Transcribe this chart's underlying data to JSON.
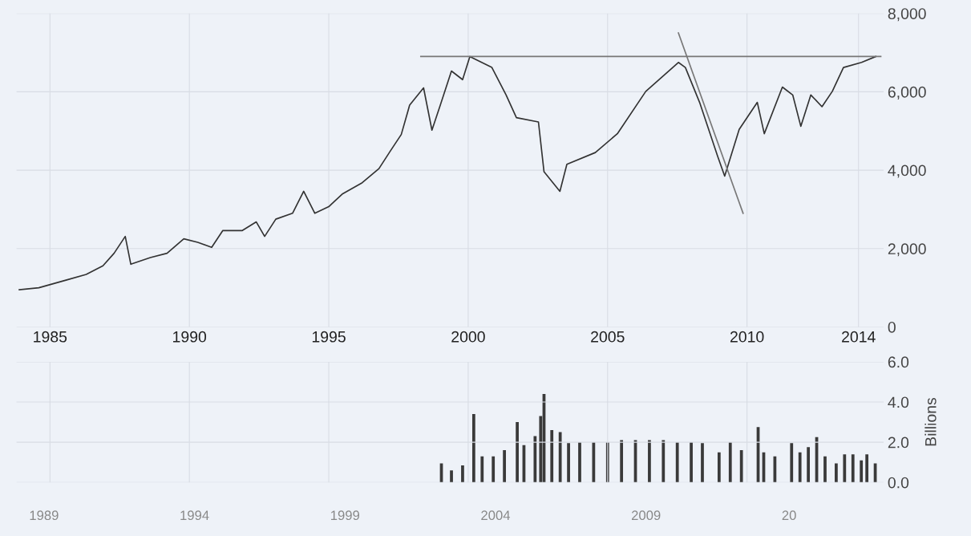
{
  "chart_data": [
    {
      "type": "line",
      "x": [
        1983.9,
        1984.6,
        1985.6,
        1986.3,
        1986.9,
        1987.3,
        1987.7,
        1987.9,
        1988.6,
        1989.2,
        1989.8,
        1990.3,
        1990.8,
        1991.2,
        1991.9,
        1992.4,
        1992.7,
        1993.1,
        1993.7,
        1994.1,
        1994.5,
        1995.0,
        1995.5,
        1996.2,
        1996.8,
        1997.2,
        1997.6,
        1997.9,
        1998.4,
        1998.7,
        1999.0,
        1999.4,
        1999.8,
        2000.06,
        2000.85,
        2001.36,
        2001.73,
        2002.52,
        2002.72,
        2003.29,
        2003.54,
        2004.56,
        2005.35,
        2006.37,
        2007.54,
        2007.79,
        2008.3,
        2008.95,
        2009.2,
        2009.72,
        2010.37,
        2010.62,
        2011.27,
        2011.64,
        2011.93,
        2012.29,
        2012.69,
        2013.06,
        2013.46,
        2014.11,
        2014.62
      ],
      "series": [
        {
          "color": "#333333",
          "values": [
            950,
            1000,
            1200,
            1340,
            1560,
            1880,
            2310,
            1600,
            1770,
            1880,
            2250,
            2160,
            2030,
            2460,
            2460,
            2680,
            2310,
            2750,
            2900,
            3460,
            2900,
            3070,
            3400,
            3680,
            4040,
            4480,
            4910,
            5660,
            6100,
            5020,
            5660,
            6530,
            6310,
            6900,
            6620,
            5920,
            5340,
            5230,
            3960,
            3460,
            4150,
            4450,
            4930,
            6010,
            6750,
            6620,
            5730,
            4350,
            3850,
            5040,
            5730,
            4930,
            6120,
            5920,
            5120,
            5920,
            5620,
            6010,
            6620,
            6750,
            6900
          ]
        },
        {
          "color": "#777777",
          "x": [
            1998.3,
            2014.8
          ],
          "values": [
            6900,
            6900
          ]
        },
        {
          "color": "#777777",
          "x": [
            2007.54,
            2009.86
          ],
          "values": [
            7500,
            2900
          ]
        }
      ],
      "xlim": [
        1983.8,
        2014.9
      ],
      "xticks": [
        1985,
        1990,
        1995,
        2000,
        2005,
        2010,
        2014
      ],
      "ylim": [
        0,
        8000
      ],
      "yticks": [
        {
          "value": 0,
          "label": "0"
        },
        {
          "value": 2000,
          "label": "2,000"
        },
        {
          "value": 4000,
          "label": "4,000"
        },
        {
          "value": 6000,
          "label": "6,000"
        },
        {
          "value": 8000,
          "label": "8,000"
        }
      ],
      "grid": true,
      "marker": "none",
      "line_style": "solid"
    },
    {
      "type": "bar",
      "x": [
        1999.04,
        1999.4,
        1999.8,
        2000.2,
        2000.5,
        2000.9,
        2001.3,
        2001.76,
        2002.0,
        2002.4,
        2002.6,
        2002.72,
        2003.0,
        2003.3,
        2003.6,
        2004.0,
        2004.5,
        2005.0,
        2005.5,
        2006.0,
        2006.5,
        2007.0,
        2007.5,
        2008.0,
        2008.4,
        2009.0,
        2009.4,
        2009.8,
        2010.4,
        2010.6,
        2011.0,
        2011.6,
        2011.9,
        2012.2,
        2012.5,
        2012.8,
        2013.2,
        2013.5,
        2013.8,
        2014.1,
        2014.3,
        2014.6
      ],
      "values": [
        0.95,
        0.6,
        0.85,
        3.4,
        1.3,
        1.3,
        1.6,
        3.0,
        1.85,
        2.3,
        3.3,
        4.4,
        2.6,
        2.5,
        1.95,
        2.0,
        2.0,
        2.0,
        2.1,
        2.1,
        2.1,
        2.1,
        2.0,
        2.0,
        1.95,
        1.5,
        2.0,
        1.6,
        2.75,
        1.5,
        1.3,
        1.95,
        1.5,
        1.75,
        2.25,
        1.3,
        0.95,
        1.4,
        1.4,
        1.1,
        1.4,
        0.95
      ],
      "color": "#3a3a3a",
      "xlim": [
        1983.8,
        2014.9
      ],
      "ylim": [
        0,
        6.0
      ],
      "yticks": [
        {
          "value": 0,
          "label": "0.0"
        },
        {
          "value": 2,
          "label": "2.0"
        },
        {
          "value": 4,
          "label": "4.0"
        },
        {
          "value": 6,
          "label": "6.0"
        }
      ],
      "ylabel": "Billions",
      "tick_labels": "y",
      "grid": true,
      "annotations": [
        "1989",
        "1994",
        "1999",
        "2004",
        "2009",
        "20"
      ]
    }
  ]
}
